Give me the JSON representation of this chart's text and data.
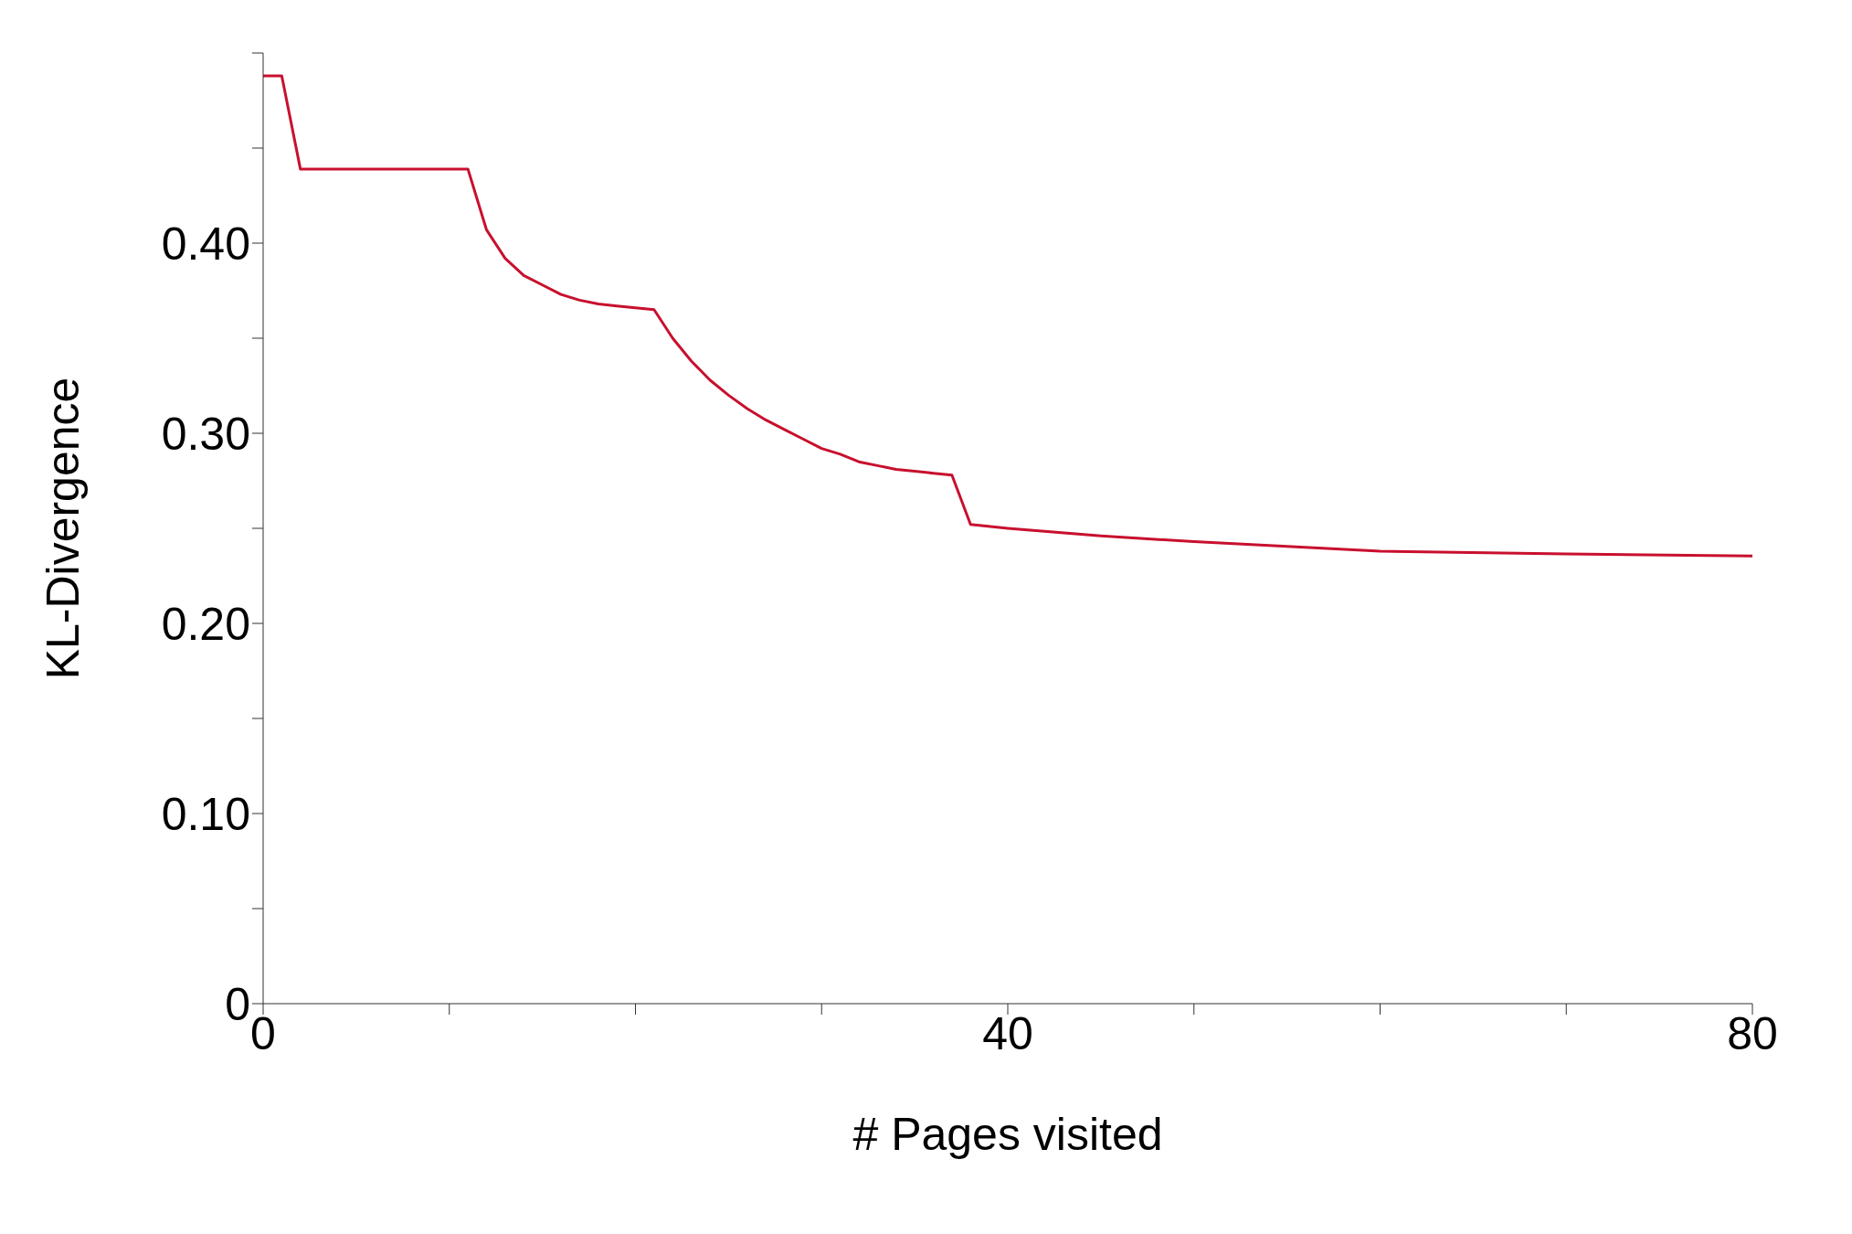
{
  "chart_data": {
    "type": "line",
    "xlabel": "# Pages visited",
    "ylabel": "KL-Divergence",
    "xlim": [
      0,
      80
    ],
    "ylim": [
      0,
      0.5
    ],
    "xticks": [
      0,
      {
        "value": 10,
        "label": null
      },
      {
        "value": 20,
        "label": null
      },
      {
        "value": 30,
        "label": null
      },
      40,
      {
        "value": 50,
        "label": null
      },
      {
        "value": 60,
        "label": null
      },
      {
        "value": 70,
        "label": null
      },
      80
    ],
    "yticks": [
      0,
      {
        "value": 0.05,
        "label": null
      },
      {
        "value": 0.1,
        "label": "0.10"
      },
      {
        "value": 0.15,
        "label": null
      },
      {
        "value": 0.2,
        "label": "0.20"
      },
      {
        "value": 0.25,
        "label": null
      },
      {
        "value": 0.3,
        "label": "0.30"
      },
      {
        "value": 0.35,
        "label": null
      },
      {
        "value": 0.4,
        "label": "0.40"
      },
      {
        "value": 0.45,
        "label": null
      },
      {
        "value": 0.5,
        "label": null
      }
    ],
    "grid": false,
    "legend": false,
    "marker": "none",
    "line_style": "solid",
    "series": [
      {
        "color": "#c8102e",
        "x": [
          0,
          1,
          2,
          11,
          12,
          13,
          14,
          15,
          16,
          17,
          18,
          19,
          20,
          21,
          22,
          23,
          24,
          25,
          26,
          27,
          28,
          29,
          30,
          31,
          32,
          33,
          34,
          35,
          36,
          37,
          38,
          40,
          45,
          50,
          55,
          60,
          70,
          80
        ],
        "values": [
          0.488,
          0.488,
          0.439,
          0.439,
          0.407,
          0.392,
          0.383,
          0.378,
          0.373,
          0.37,
          0.368,
          0.367,
          0.366,
          0.365,
          0.35,
          0.338,
          0.328,
          0.32,
          0.313,
          0.307,
          0.302,
          0.297,
          0.292,
          0.289,
          0.285,
          0.283,
          0.281,
          0.28,
          0.279,
          0.278,
          0.252,
          0.25,
          0.246,
          0.243,
          0.2405,
          0.238,
          0.2365,
          0.2355
        ]
      }
    ]
  }
}
